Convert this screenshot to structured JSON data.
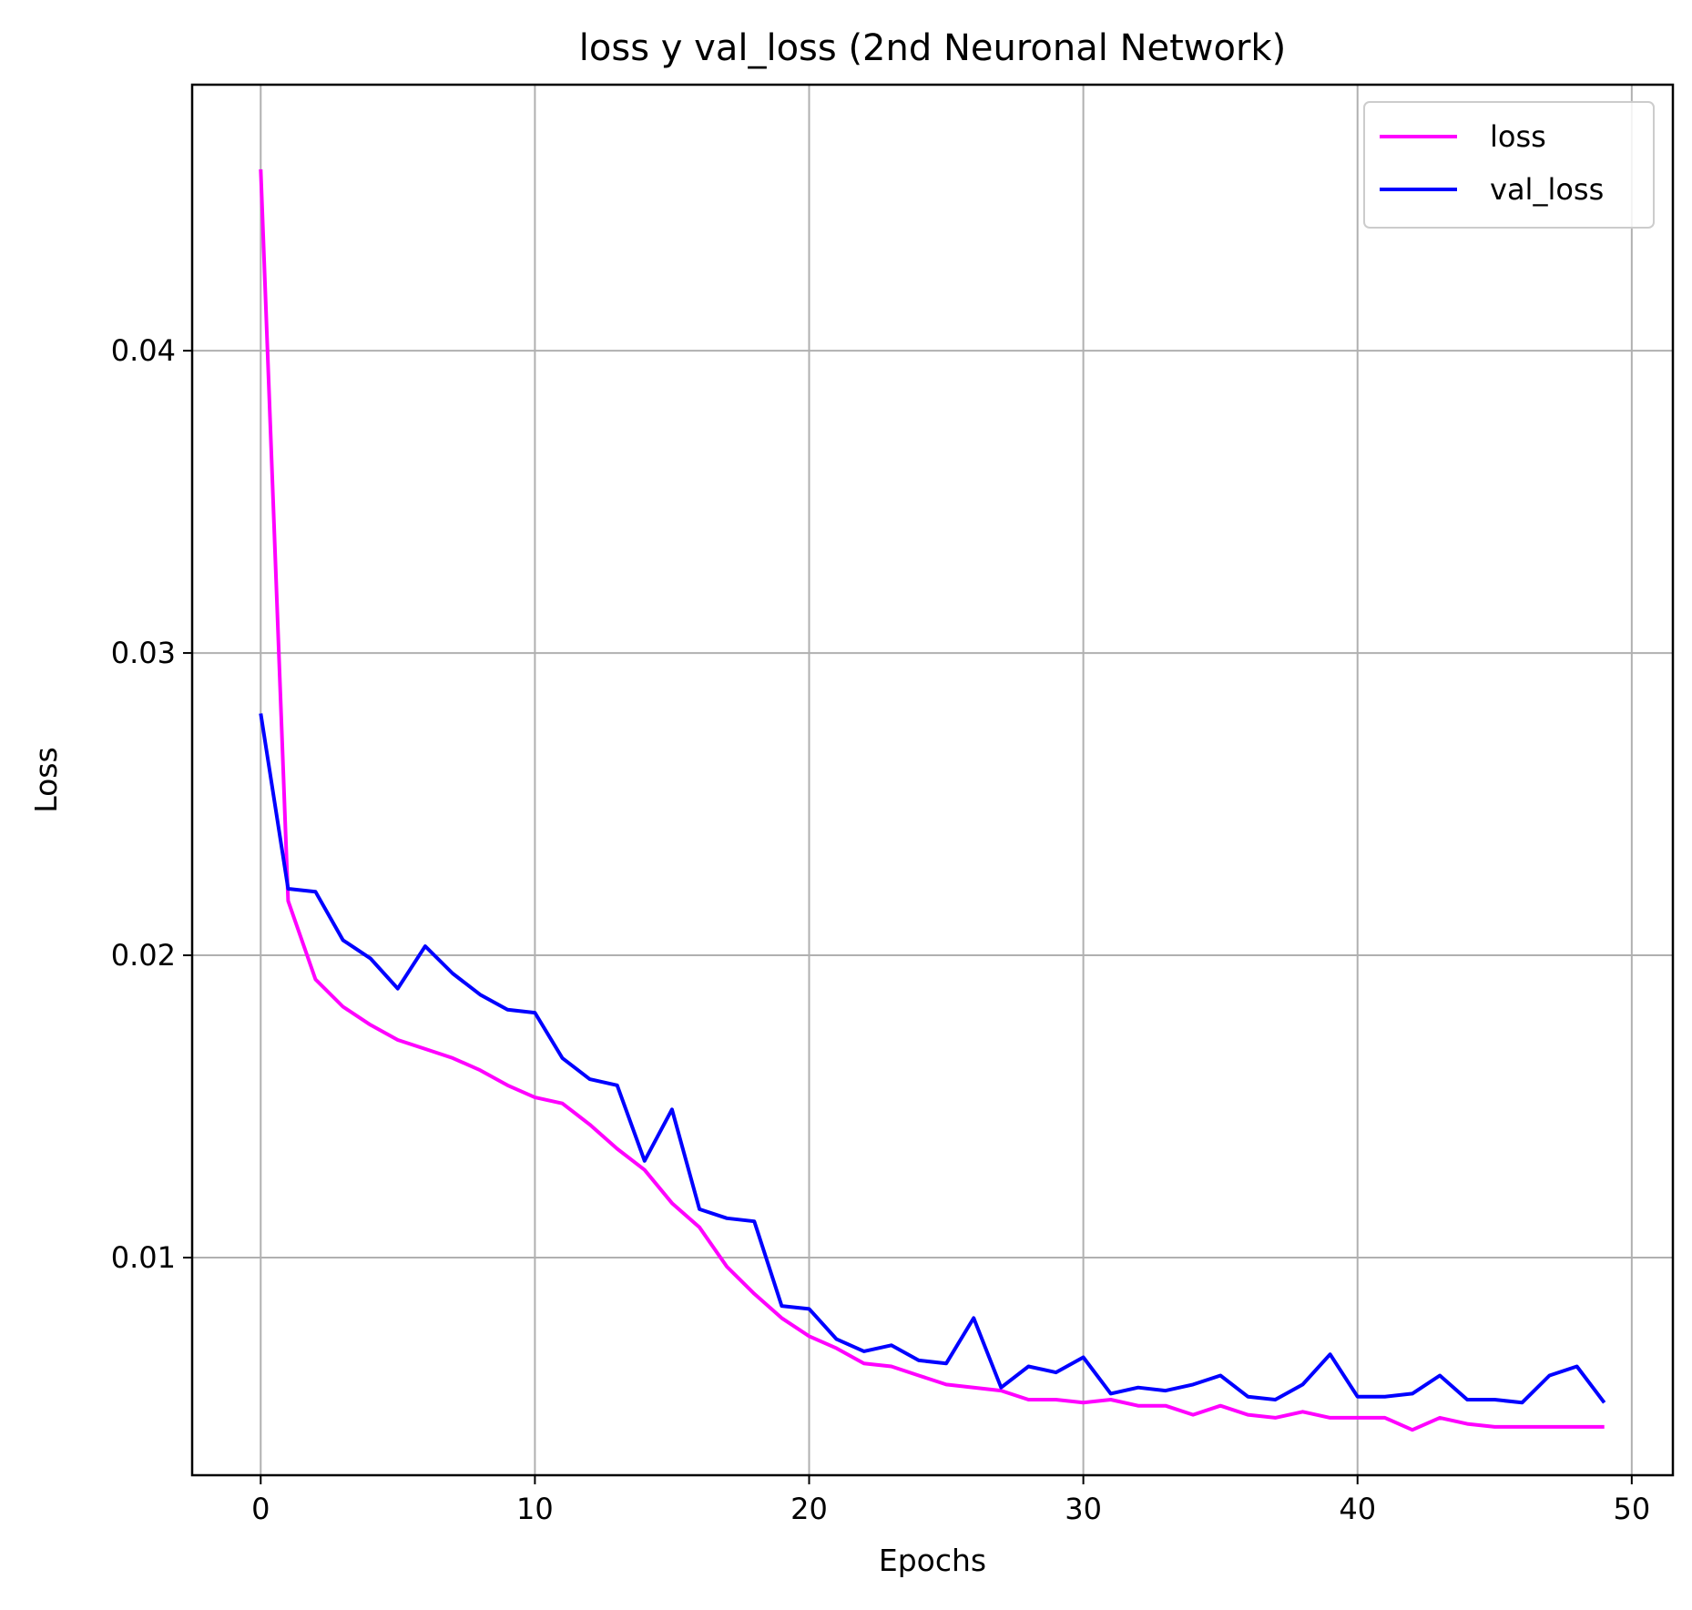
{
  "chart_data": {
    "type": "line",
    "title": "loss y val_loss (2nd Neuronal Network)",
    "xlabel": "Epochs",
    "ylabel": "Loss",
    "xlim": [
      -2.5,
      51.5
    ],
    "ylim": [
      0.0028,
      0.0488
    ],
    "xticks": [
      0,
      10,
      20,
      30,
      40,
      50
    ],
    "xtick_labels": [
      "0",
      "10",
      "20",
      "30",
      "40",
      "50"
    ],
    "yticks": [
      0.01,
      0.02,
      0.03,
      0.04
    ],
    "ytick_labels": [
      "0.01",
      "0.02",
      "0.03",
      "0.04"
    ],
    "grid": true,
    "legend": "top-right",
    "x": [
      0,
      1,
      2,
      3,
      4,
      5,
      6,
      7,
      8,
      9,
      10,
      11,
      12,
      13,
      14,
      15,
      16,
      17,
      18,
      19,
      20,
      21,
      22,
      23,
      24,
      25,
      26,
      27,
      28,
      29,
      30,
      31,
      32,
      33,
      34,
      35,
      36,
      37,
      38,
      39,
      40,
      41,
      42,
      43,
      44,
      45,
      46,
      47,
      48,
      49
    ],
    "series": [
      {
        "name": "loss",
        "color": "#ff00ff",
        "values": [
          0.046,
          0.0218,
          0.0192,
          0.0183,
          0.0177,
          0.0172,
          0.0169,
          0.0166,
          0.0162,
          0.0157,
          0.0153,
          0.0151,
          0.0144,
          0.0136,
          0.0129,
          0.0118,
          0.011,
          0.0097,
          0.0088,
          0.008,
          0.0074,
          0.007,
          0.0065,
          0.0064,
          0.0061,
          0.0058,
          0.0057,
          0.0056,
          0.0053,
          0.0053,
          0.0052,
          0.0053,
          0.0051,
          0.0051,
          0.0048,
          0.0051,
          0.0048,
          0.0047,
          0.0049,
          0.0047,
          0.0047,
          0.0047,
          0.0043,
          0.0047,
          0.0045,
          0.0044,
          0.0044,
          0.0044,
          0.0044,
          0.0044
        ]
      },
      {
        "name": "val_loss",
        "color": "#0000ff",
        "values": [
          0.028,
          0.0222,
          0.0221,
          0.0205,
          0.0199,
          0.0189,
          0.0203,
          0.0194,
          0.0187,
          0.0182,
          0.0181,
          0.0166,
          0.0159,
          0.0157,
          0.0132,
          0.0149,
          0.0116,
          0.0113,
          0.0112,
          0.0084,
          0.0083,
          0.0073,
          0.0069,
          0.0071,
          0.0066,
          0.0065,
          0.008,
          0.0057,
          0.0064,
          0.0062,
          0.0067,
          0.0055,
          0.0057,
          0.0056,
          0.0058,
          0.0061,
          0.0054,
          0.0053,
          0.0058,
          0.0068,
          0.0054,
          0.0054,
          0.0055,
          0.0061,
          0.0053,
          0.0053,
          0.0052,
          0.0061,
          0.0064,
          0.0052
        ]
      }
    ]
  }
}
